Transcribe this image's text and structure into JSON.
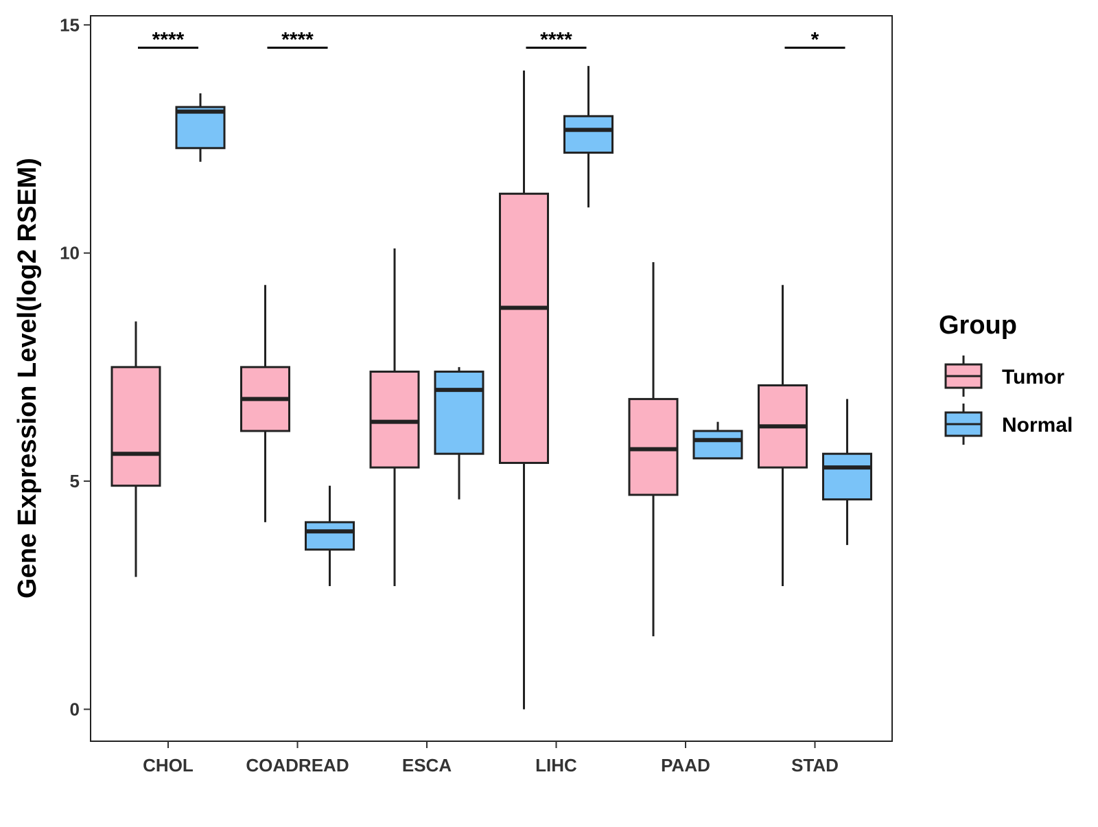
{
  "chart_data": {
    "type": "boxplot",
    "title": "",
    "xlabel": "",
    "ylabel": "Gene Expression Level(log2 RSEM)",
    "ylim": [
      -0.7,
      15.2
    ],
    "yticks": [
      0,
      5,
      10,
      15
    ],
    "categories": [
      "CHOL",
      "COADREAD",
      "ESCA",
      "LIHC",
      "PAAD",
      "STAD"
    ],
    "legend": {
      "title": "Group",
      "position": "right",
      "entries": [
        "Tumor",
        "Normal"
      ]
    },
    "series": [
      {
        "name": "Tumor",
        "color": "#FBB1C2",
        "boxes": [
          {
            "category": "CHOL",
            "min": 2.9,
            "q1": 4.9,
            "median": 5.6,
            "q3": 7.5,
            "max": 8.5
          },
          {
            "category": "COADREAD",
            "min": 4.1,
            "q1": 6.1,
            "median": 6.8,
            "q3": 7.5,
            "max": 9.3
          },
          {
            "category": "ESCA",
            "min": 2.7,
            "q1": 5.3,
            "median": 6.3,
            "q3": 7.4,
            "max": 10.1
          },
          {
            "category": "LIHC",
            "min": 0.0,
            "q1": 5.4,
            "median": 8.8,
            "q3": 11.3,
            "max": 14.0
          },
          {
            "category": "PAAD",
            "min": 1.6,
            "q1": 4.7,
            "median": 5.7,
            "q3": 6.8,
            "max": 9.8
          },
          {
            "category": "STAD",
            "min": 2.7,
            "q1": 5.3,
            "median": 6.2,
            "q3": 7.1,
            "max": 9.3
          }
        ]
      },
      {
        "name": "Normal",
        "color": "#7AC3F8",
        "boxes": [
          {
            "category": "CHOL",
            "min": 12.0,
            "q1": 12.3,
            "median": 13.1,
            "q3": 13.2,
            "max": 13.5
          },
          {
            "category": "COADREAD",
            "min": 2.7,
            "q1": 3.5,
            "median": 3.9,
            "q3": 4.1,
            "max": 4.9
          },
          {
            "category": "ESCA",
            "min": 4.6,
            "q1": 5.6,
            "median": 7.0,
            "q3": 7.4,
            "max": 7.5
          },
          {
            "category": "LIHC",
            "min": 11.0,
            "q1": 12.2,
            "median": 12.7,
            "q3": 13.0,
            "max": 14.1
          },
          {
            "category": "PAAD",
            "min": 5.5,
            "q1": 5.5,
            "median": 5.9,
            "q3": 6.1,
            "max": 6.3
          },
          {
            "category": "STAD",
            "min": 3.6,
            "q1": 4.6,
            "median": 5.3,
            "q3": 5.6,
            "max": 6.8
          }
        ]
      }
    ],
    "significance": [
      {
        "category": "CHOL",
        "label": "****",
        "y": 14.5
      },
      {
        "category": "COADREAD",
        "label": "****",
        "y": 14.5
      },
      {
        "category": "LIHC",
        "label": "****",
        "y": 14.5
      },
      {
        "category": "STAD",
        "label": "*",
        "y": 14.5
      }
    ]
  }
}
